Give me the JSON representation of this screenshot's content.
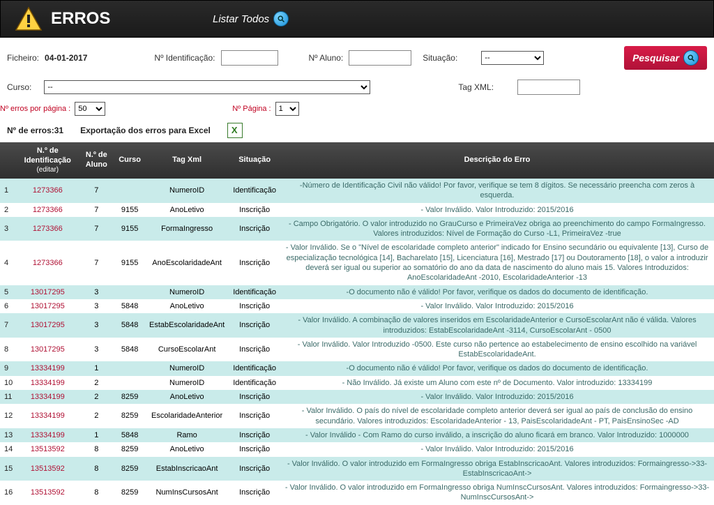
{
  "header": {
    "title": "ERROS",
    "list_all": "Listar Todos"
  },
  "filters": {
    "ficheiro_label": "Ficheiro:",
    "ficheiro_value": "04-01-2017",
    "identificacao_label": "Nº Identificação:",
    "aluno_label": "Nº Aluno:",
    "situacao_label": "Situação:",
    "situacao_value": "--",
    "pesquisar": "Pesquisar",
    "curso_label": "Curso:",
    "curso_value": "--",
    "tagxml_label": "Tag XML:"
  },
  "pager": {
    "per_page_label": "Nº erros por página :",
    "per_page_value": "50",
    "page_label": "Nº Página :",
    "page_value": "1"
  },
  "summary": {
    "total_label": "Nº de erros:",
    "total_value": "31",
    "export_label": "Exportação dos erros para Excel"
  },
  "columns": {
    "ident": "N.º de Identificação",
    "ident_sub": "(editar)",
    "aluno": "N.º de Aluno",
    "curso": "Curso",
    "tagxml": "Tag Xml",
    "situacao": "Situação",
    "descricao": "Descrição do Erro"
  },
  "rows": [
    {
      "idx": "1",
      "id": "1273366",
      "aluno": "7",
      "curso": "",
      "tag": "NumeroID",
      "sit": "Identificação",
      "desc": "-Número de Identificação Civil não válido! Por favor, verifique se tem 8 dígitos. Se necessário preencha com zeros à esquerda."
    },
    {
      "idx": "2",
      "id": "1273366",
      "aluno": "7",
      "curso": "9155",
      "tag": "AnoLetivo",
      "sit": "Inscrição",
      "desc": "- Valor Inválido. Valor Introduzido: 2015/2016"
    },
    {
      "idx": "3",
      "id": "1273366",
      "aluno": "7",
      "curso": "9155",
      "tag": "FormaIngresso",
      "sit": "Inscrição",
      "desc": "- Campo Obrigatório. O valor introduzido no GrauCurso e PrimeiraVez obriga ao preenchimento do campo FormaIngresso. Valores introduzidos: Nível de Formação do Curso -L1, PrimeiraVez -true"
    },
    {
      "idx": "4",
      "id": "1273366",
      "aluno": "7",
      "curso": "9155",
      "tag": "AnoEscolaridadeAnt",
      "sit": "Inscrição",
      "desc": "- Valor Inválido. Se o \"Nível de escolaridade completo anterior\" indicado for Ensino secundário ou equivalente [13], Curso de especialização tecnológica [14], Bacharelato [15], Licenciatura [16], Mestrado [17] ou Doutoramento [18], o valor a introduzir deverá ser igual ou superior ao somatório do ano da data de nascimento do aluno mais 15. Valores Introduzidos: AnoEscolaridadeAnt -2010, EscolaridadeAnterior -13"
    },
    {
      "idx": "5",
      "id": "13017295",
      "aluno": "3",
      "curso": "",
      "tag": "NumeroID",
      "sit": "Identificação",
      "desc": "-O documento não é válido! Por favor, verifique os dados do documento de identificação."
    },
    {
      "idx": "6",
      "id": "13017295",
      "aluno": "3",
      "curso": "5848",
      "tag": "AnoLetivo",
      "sit": "Inscrição",
      "desc": "- Valor Inválido. Valor Introduzido: 2015/2016"
    },
    {
      "idx": "7",
      "id": "13017295",
      "aluno": "3",
      "curso": "5848",
      "tag": "EstabEscolaridadeAnt",
      "sit": "Inscrição",
      "desc": "- Valor Inválido. A combinação de valores inseridos em EscolaridadeAnterior e CursoEscolarAnt não é válida. Valores introduzidos: EstabEscolaridadeAnt -3114, CursoEscolarAnt - 0500"
    },
    {
      "idx": "8",
      "id": "13017295",
      "aluno": "3",
      "curso": "5848",
      "tag": "CursoEscolarAnt",
      "sit": "Inscrição",
      "desc": "- Valor Inválido. Valor Introduzido -0500. Este curso não pertence ao estabelecimento de ensino escolhido na variável EstabEscolaridadeAnt."
    },
    {
      "idx": "9",
      "id": "13334199",
      "aluno": "1",
      "curso": "",
      "tag": "NumeroID",
      "sit": "Identificação",
      "desc": "-O documento não é válido! Por favor, verifique os dados do documento de identificação."
    },
    {
      "idx": "10",
      "id": "13334199",
      "aluno": "2",
      "curso": "",
      "tag": "NumeroID",
      "sit": "Identificação",
      "desc": "- Não Inválido. Já existe um Aluno com este nº de Documento. Valor introduzido: 13334199"
    },
    {
      "idx": "11",
      "id": "13334199",
      "aluno": "2",
      "curso": "8259",
      "tag": "AnoLetivo",
      "sit": "Inscrição",
      "desc": "- Valor Inválido. Valor Introduzido: 2015/2016"
    },
    {
      "idx": "12",
      "id": "13334199",
      "aluno": "2",
      "curso": "8259",
      "tag": "EscolaridadeAnterior",
      "sit": "Inscrição",
      "desc": "- Valor Inválido. O país do nível de escolaridade completo anterior deverá ser igual ao país de conclusão do ensino secundário. Valores introduzidos: EscolaridadeAnterior - 13, PaisEscolaridadeAnt - PT, PaisEnsinoSec -AD"
    },
    {
      "idx": "13",
      "id": "13334199",
      "aluno": "1",
      "curso": "5848",
      "tag": "Ramo",
      "sit": "Inscrição",
      "desc": "- Valor Inválido - Com Ramo do curso inválido, a inscrição do aluno ficará em branco. Valor Introduzido: 1000000"
    },
    {
      "idx": "14",
      "id": "13513592",
      "aluno": "8",
      "curso": "8259",
      "tag": "AnoLetivo",
      "sit": "Inscrição",
      "desc": "- Valor Inválido. Valor Introduzido: 2015/2016"
    },
    {
      "idx": "15",
      "id": "13513592",
      "aluno": "8",
      "curso": "8259",
      "tag": "EstabInscricaoAnt",
      "sit": "Inscrição",
      "desc": "- Valor Inválido. O valor introduzido em FormaIngresso obriga EstabInscricaoAnt. Valores introduzidos: Formaingresso->33-EstabInscricaoAnt->"
    },
    {
      "idx": "16",
      "id": "13513592",
      "aluno": "8",
      "curso": "8259",
      "tag": "NumInsCursosAnt",
      "sit": "Inscrição",
      "desc": "- Valor Inválido. O valor introduzido em FormaIngresso obriga NumInscCursosAnt. Valores introduzidos: Formaingresso->33-NumInscCursosAnt->"
    }
  ]
}
